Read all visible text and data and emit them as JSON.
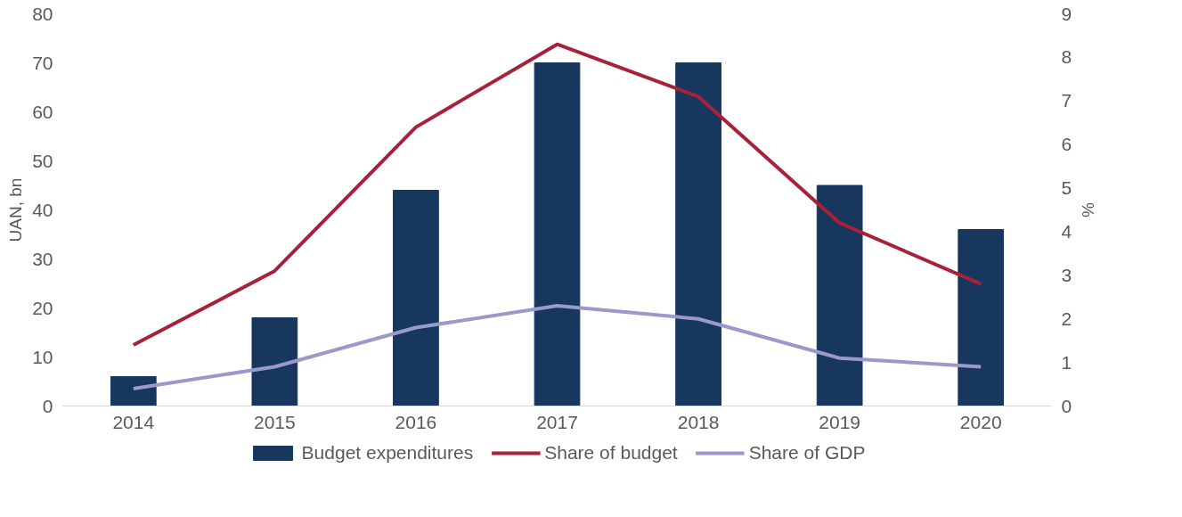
{
  "chart_data": {
    "type": "bar",
    "categories": [
      "2014",
      "2015",
      "2016",
      "2017",
      "2018",
      "2019",
      "2020"
    ],
    "series": [
      {
        "name": "Budget expenditures",
        "color": "#17375e",
        "values": [
          6,
          18,
          44,
          70,
          70,
          45,
          36
        ]
      },
      {
        "name": "Share of budget",
        "type": "line",
        "axis": "y2",
        "color": "#a8213a",
        "values": [
          1.4,
          3.1,
          6.4,
          8.3,
          7.1,
          4.2,
          2.8
        ]
      },
      {
        "name": "Share of GDP",
        "type": "line",
        "axis": "y2",
        "color": "#9999cc",
        "values": [
          0.4,
          0.9,
          1.8,
          2.3,
          2.0,
          1.1,
          0.9
        ]
      }
    ],
    "ylabel": "UAN, bn",
    "y2label": "%",
    "ylim": [
      0,
      80
    ],
    "yticks": [
      0,
      10,
      20,
      30,
      40,
      50,
      60,
      70,
      80
    ],
    "y2lim": [
      0,
      9
    ],
    "y2ticks": [
      0,
      1,
      2,
      3,
      4,
      5,
      6,
      7,
      8,
      9
    ],
    "grid": false,
    "legend": "bottom",
    "marker": "none",
    "line_style": "solid"
  }
}
